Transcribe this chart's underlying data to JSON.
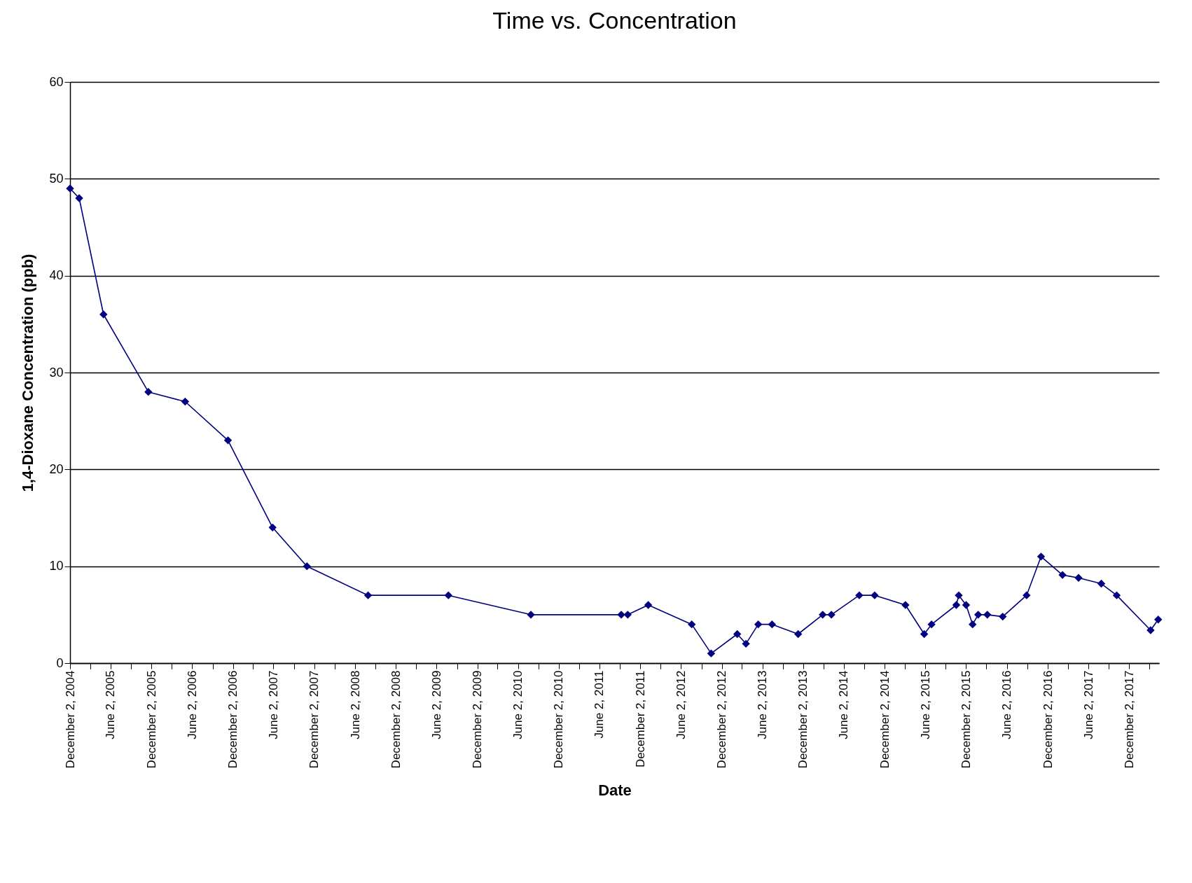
{
  "chart_data": {
    "type": "line",
    "title": "Time vs. Concentration",
    "xlabel": "Date",
    "ylabel": "1,4-Dioxane Concentration (ppb)",
    "x": [
      "2004-12-02",
      "2005-01-12",
      "2005-05-01",
      "2005-11-18",
      "2006-05-02",
      "2006-11-10",
      "2007-05-29",
      "2007-10-30",
      "2008-07-30",
      "2009-07-25",
      "2010-07-30",
      "2011-09-08",
      "2011-10-07",
      "2012-01-07",
      "2012-07-20",
      "2012-10-15",
      "2013-02-09",
      "2013-03-20",
      "2013-05-14",
      "2013-07-15",
      "2013-11-09",
      "2014-02-27",
      "2014-04-07",
      "2014-08-10",
      "2014-10-18",
      "2015-03-05",
      "2015-05-28",
      "2015-06-30",
      "2015-10-19",
      "2015-10-30",
      "2015-12-02",
      "2015-12-31",
      "2016-01-25",
      "2016-03-06",
      "2016-05-14",
      "2016-08-29",
      "2016-11-02",
      "2017-02-06",
      "2017-04-19",
      "2017-07-30",
      "2017-10-07",
      "2018-03-08",
      "2018-04-11"
    ],
    "series": [
      {
        "color": "#000080",
        "values": [
          49,
          48,
          36,
          28,
          27,
          23,
          14,
          10,
          7,
          7,
          5,
          5,
          5,
          6,
          4,
          1,
          3,
          2,
          4,
          4,
          3,
          5,
          5,
          7,
          7,
          6,
          3,
          4,
          6,
          7,
          6,
          4,
          5,
          5,
          4.8,
          7,
          11,
          9.1,
          8.8,
          8.2,
          7,
          3.4,
          4.5
        ]
      }
    ],
    "xlim": [
      "2004-12-02",
      "2018-04-15"
    ],
    "xticks": [
      {
        "value": "2004-12-02",
        "label": "December 2, 2004"
      },
      {
        "value": "2005-03-02",
        "label": null
      },
      {
        "value": "2005-06-02",
        "label": "June 2, 2005"
      },
      {
        "value": "2005-09-02",
        "label": null
      },
      {
        "value": "2005-12-02",
        "label": "December 2, 2005"
      },
      {
        "value": "2006-03-02",
        "label": null
      },
      {
        "value": "2006-06-02",
        "label": "June 2, 2006"
      },
      {
        "value": "2006-09-02",
        "label": null
      },
      {
        "value": "2006-12-02",
        "label": "December 2, 2006"
      },
      {
        "value": "2007-03-02",
        "label": null
      },
      {
        "value": "2007-06-02",
        "label": "June 2, 2007"
      },
      {
        "value": "2007-09-02",
        "label": null
      },
      {
        "value": "2007-12-02",
        "label": "December 2, 2007"
      },
      {
        "value": "2008-03-02",
        "label": null
      },
      {
        "value": "2008-06-02",
        "label": "June 2, 2008"
      },
      {
        "value": "2008-09-02",
        "label": null
      },
      {
        "value": "2008-12-02",
        "label": "December 2, 2008"
      },
      {
        "value": "2009-03-02",
        "label": null
      },
      {
        "value": "2009-06-02",
        "label": "June 2, 2009"
      },
      {
        "value": "2009-09-02",
        "label": null
      },
      {
        "value": "2009-12-02",
        "label": "December 2, 2009"
      },
      {
        "value": "2010-03-02",
        "label": null
      },
      {
        "value": "2010-06-02",
        "label": "June 2, 2010"
      },
      {
        "value": "2010-09-02",
        "label": null
      },
      {
        "value": "2010-12-02",
        "label": "December 2, 2010"
      },
      {
        "value": "2011-03-02",
        "label": null
      },
      {
        "value": "2011-06-02",
        "label": "June 2, 2011"
      },
      {
        "value": "2011-09-02",
        "label": null
      },
      {
        "value": "2011-12-02",
        "label": "December 2, 2011"
      },
      {
        "value": "2012-03-02",
        "label": null
      },
      {
        "value": "2012-06-02",
        "label": "June 2, 2012"
      },
      {
        "value": "2012-09-02",
        "label": null
      },
      {
        "value": "2012-12-02",
        "label": "December 2, 2012"
      },
      {
        "value": "2013-03-02",
        "label": null
      },
      {
        "value": "2013-06-02",
        "label": "June 2, 2013"
      },
      {
        "value": "2013-09-02",
        "label": null
      },
      {
        "value": "2013-12-02",
        "label": "December 2, 2013"
      },
      {
        "value": "2014-03-02",
        "label": null
      },
      {
        "value": "2014-06-02",
        "label": "June 2, 2014"
      },
      {
        "value": "2014-09-02",
        "label": null
      },
      {
        "value": "2014-12-02",
        "label": "December 2, 2014"
      },
      {
        "value": "2015-03-02",
        "label": null
      },
      {
        "value": "2015-06-02",
        "label": "June 2, 2015"
      },
      {
        "value": "2015-09-02",
        "label": null
      },
      {
        "value": "2015-12-02",
        "label": "December 2, 2015"
      },
      {
        "value": "2016-03-02",
        "label": null
      },
      {
        "value": "2016-06-02",
        "label": "June 2, 2016"
      },
      {
        "value": "2016-09-02",
        "label": null
      },
      {
        "value": "2016-12-02",
        "label": "December 2, 2016"
      },
      {
        "value": "2017-03-02",
        "label": null
      },
      {
        "value": "2017-06-02",
        "label": "June 2, 2017"
      },
      {
        "value": "2017-09-02",
        "label": null
      },
      {
        "value": "2017-12-02",
        "label": "December 2, 2017"
      },
      {
        "value": "2018-03-02",
        "label": null
      }
    ],
    "ylim": [
      0,
      60
    ],
    "yticks": [
      0,
      10,
      20,
      30,
      40,
      50,
      60
    ],
    "grid": "y",
    "marker": "diamond",
    "line_style": "solid"
  }
}
